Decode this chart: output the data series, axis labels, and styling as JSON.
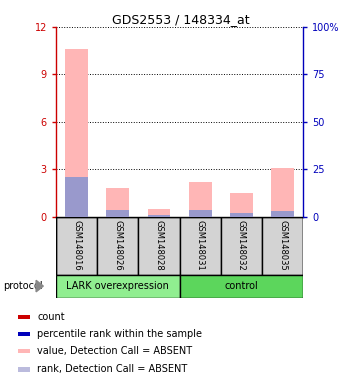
{
  "title": "GDS2553 / 148334_at",
  "samples": [
    "GSM148016",
    "GSM148026",
    "GSM148028",
    "GSM148031",
    "GSM148032",
    "GSM148035"
  ],
  "bar_heights_pink": [
    10.6,
    1.8,
    0.5,
    2.2,
    1.5,
    3.1
  ],
  "bar_heights_blue": [
    2.5,
    0.45,
    0.1,
    0.45,
    0.25,
    0.4
  ],
  "ylim_left": [
    0,
    12
  ],
  "ylim_right": [
    0,
    100
  ],
  "yticks_left": [
    0,
    3,
    6,
    9,
    12
  ],
  "yticks_right": [
    0,
    25,
    50,
    75,
    100
  ],
  "ytick_labels_right": [
    "0",
    "25",
    "50",
    "75",
    "100%"
  ],
  "left_axis_color": "#CC0000",
  "right_axis_color": "#0000BB",
  "pink_color": "#FFB6B6",
  "blue_color": "#9999CC",
  "legend_items": [
    {
      "color": "#CC0000",
      "label": "count"
    },
    {
      "color": "#0000BB",
      "label": "percentile rank within the sample"
    },
    {
      "color": "#FFB6B6",
      "label": "value, Detection Call = ABSENT"
    },
    {
      "color": "#BBBBDD",
      "label": "rank, Detection Call = ABSENT"
    }
  ],
  "lark_color": "#90EE90",
  "control_color": "#5CD65C",
  "gray_box": "#D3D3D3"
}
